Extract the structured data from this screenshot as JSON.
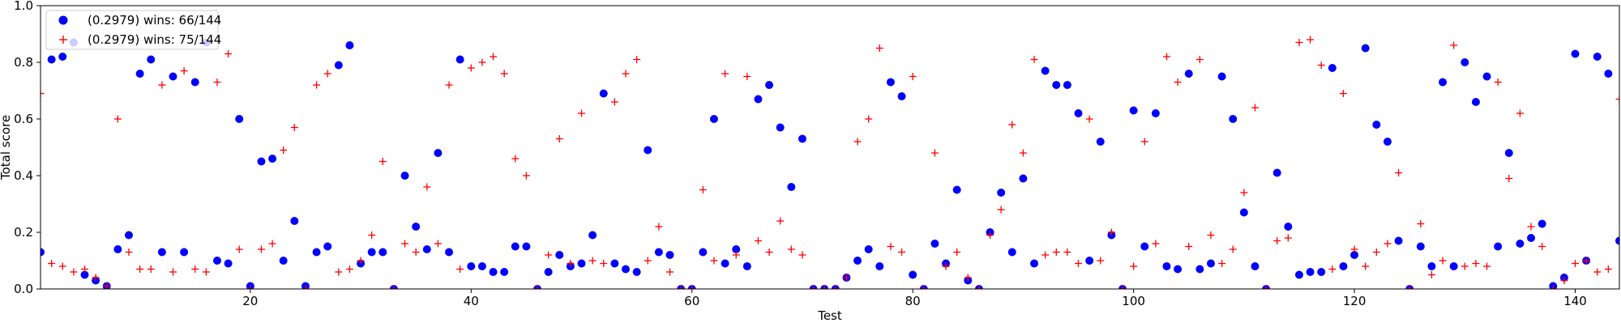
{
  "chart_data": {
    "type": "scatter",
    "title": "",
    "xlabel": "Test",
    "ylabel": "Total score",
    "xlim": [
      1,
      144
    ],
    "ylim": [
      0,
      1
    ],
    "x_ticks": [
      20,
      40,
      60,
      80,
      100,
      120,
      140
    ],
    "y_ticks": [
      0.0,
      0.2,
      0.4,
      0.6,
      0.8,
      1.0
    ],
    "y_tick_labels": [
      "0.0",
      "0.2",
      "0.4",
      "0.6",
      "0.8",
      "1.0"
    ],
    "grid": false,
    "legend_position": "top-left",
    "series": [
      {
        "name": "(0.2979) wins: 66/144",
        "marker": "circle",
        "color": "#0000ff",
        "values": [
          0.13,
          0.81,
          0.82,
          0.87,
          0.05,
          0.03,
          0.01,
          0.14,
          0.19,
          0.76,
          0.81,
          0.13,
          0.75,
          0.13,
          0.73,
          0.87,
          0.1,
          0.09,
          0.6,
          0.01,
          0.45,
          0.46,
          0.1,
          0.24,
          0.01,
          0.13,
          0.15,
          0.79,
          0.86,
          0.09,
          0.13,
          0.13,
          0.0,
          0.4,
          0.22,
          0.14,
          0.48,
          0.13,
          0.81,
          0.08,
          0.08,
          0.06,
          0.06,
          0.15,
          0.15,
          0.0,
          0.06,
          0.12,
          0.08,
          0.09,
          0.19,
          0.69,
          0.09,
          0.07,
          0.06,
          0.49,
          0.13,
          0.12,
          0.0,
          0.0,
          0.13,
          0.6,
          0.09,
          0.14,
          0.08,
          0.67,
          0.72,
          0.57,
          0.36,
          0.53,
          0.0,
          0.0,
          0.0,
          0.04,
          0.1,
          0.14,
          0.08,
          0.73,
          0.68,
          0.05,
          0.0,
          0.16,
          0.09,
          0.35,
          0.03,
          0.0,
          0.2,
          0.34,
          0.13,
          0.39,
          0.09,
          0.77,
          0.72,
          0.72,
          0.62,
          0.1,
          0.52,
          0.19,
          0.0,
          0.63,
          0.15,
          0.62,
          0.08,
          0.07,
          0.76,
          0.07,
          0.09,
          0.75,
          0.6,
          0.27,
          0.08,
          0.0,
          0.41,
          0.22,
          0.05,
          0.06,
          0.06,
          0.78,
          0.08,
          0.12,
          0.85,
          0.58,
          0.52,
          0.17,
          0.0,
          0.15,
          0.08,
          0.73,
          0.08,
          0.8,
          0.66,
          0.75,
          0.15,
          0.48,
          0.16,
          0.18,
          0.23,
          0.01,
          0.04,
          0.83,
          0.1,
          0.82,
          0.76,
          0.17
        ]
      },
      {
        "name": "(0.2979) wins: 75/144",
        "marker": "plus",
        "color": "#ff0000",
        "values": [
          0.69,
          0.09,
          0.08,
          0.06,
          0.07,
          0.04,
          0.01,
          0.6,
          0.13,
          0.07,
          0.07,
          0.72,
          0.06,
          0.77,
          0.07,
          0.06,
          0.73,
          0.83,
          0.14,
          0.0,
          0.14,
          0.16,
          0.49,
          0.57,
          0.0,
          0.72,
          0.76,
          0.06,
          0.07,
          0.1,
          0.19,
          0.45,
          0.0,
          0.16,
          0.13,
          0.36,
          0.16,
          0.72,
          0.07,
          0.78,
          0.8,
          0.82,
          0.76,
          0.46,
          0.4,
          0.0,
          0.12,
          0.53,
          0.09,
          0.62,
          0.1,
          0.09,
          0.66,
          0.76,
          0.81,
          0.1,
          0.22,
          0.06,
          0.0,
          0.0,
          0.35,
          0.1,
          0.76,
          0.12,
          0.75,
          0.17,
          0.13,
          0.24,
          0.14,
          0.12,
          0.0,
          0.0,
          0.0,
          0.04,
          0.52,
          0.6,
          0.85,
          0.15,
          0.13,
          0.75,
          0.0,
          0.48,
          0.08,
          0.13,
          0.04,
          0.0,
          0.19,
          0.28,
          0.58,
          0.48,
          0.81,
          0.12,
          0.13,
          0.13,
          0.09,
          0.6,
          0.1,
          0.2,
          0.0,
          0.08,
          0.52,
          0.16,
          0.82,
          0.73,
          0.15,
          0.81,
          0.19,
          0.09,
          0.14,
          0.34,
          0.64,
          0.0,
          0.17,
          0.18,
          0.87,
          0.88,
          0.79,
          0.07,
          0.69,
          0.14,
          0.08,
          0.13,
          0.16,
          0.41,
          0.0,
          0.23,
          0.05,
          0.1,
          0.86,
          0.08,
          0.09,
          0.08,
          0.73,
          0.39,
          0.62,
          0.22,
          0.15,
          0.0,
          0.03,
          0.09,
          0.1,
          0.06,
          0.07,
          0.67
        ]
      }
    ]
  }
}
